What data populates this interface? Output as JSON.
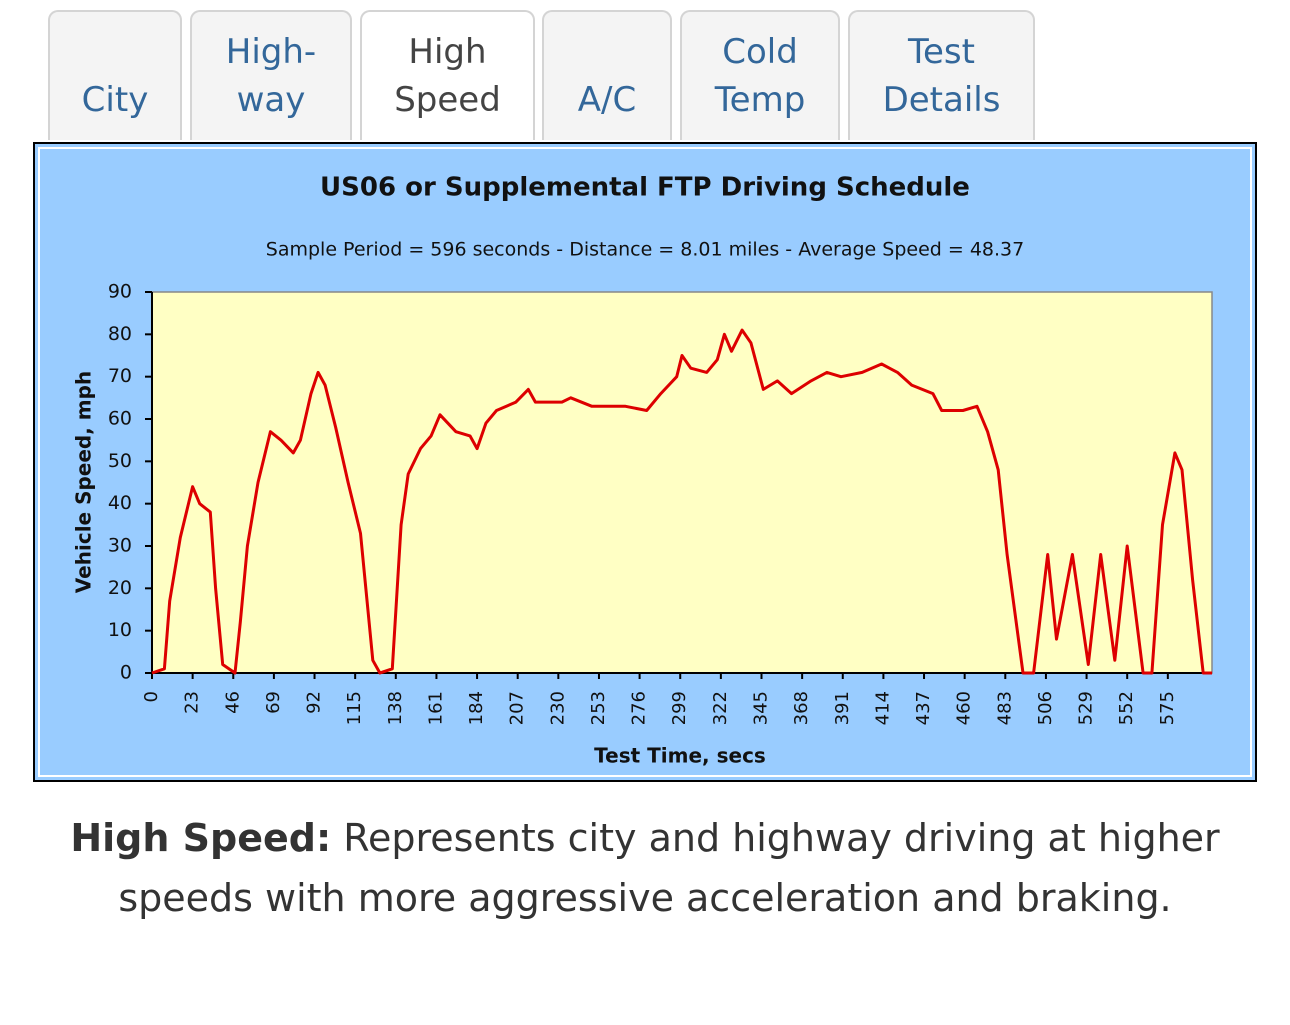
{
  "tabs": [
    {
      "lines": [
        "City"
      ]
    },
    {
      "lines": [
        "High-",
        "way"
      ]
    },
    {
      "lines": [
        "High",
        "Speed"
      ]
    },
    {
      "lines": [
        "A/C"
      ]
    },
    {
      "lines": [
        "Cold",
        "Temp"
      ]
    },
    {
      "lines": [
        "Test",
        "Details"
      ]
    }
  ],
  "chart_data": {
    "type": "line",
    "title": "US06 or Supplemental FTP Driving Schedule",
    "subtitle": "Sample Period = 596 seconds - Distance = 8.01 miles - Average Speed = 48.37",
    "x_label": "Test Time, secs",
    "y_label": "Vehicle Speed, mph",
    "color": "#dd0000",
    "x": [
      0,
      7,
      10,
      16,
      23,
      27,
      33,
      36,
      40,
      47,
      50,
      54,
      60,
      67,
      73,
      80,
      84,
      90,
      94,
      98,
      104,
      111,
      118,
      125,
      129,
      136,
      141,
      145,
      152,
      158,
      163,
      172,
      180,
      184,
      189,
      195,
      206,
      213,
      217,
      232,
      237,
      249,
      268,
      280,
      288,
      297,
      300,
      305,
      314,
      320,
      324,
      328,
      334,
      339,
      346,
      354,
      362,
      373,
      382,
      390,
      402,
      413,
      422,
      430,
      442,
      447,
      459,
      467,
      473,
      479,
      484,
      493,
      499,
      507,
      512,
      521,
      530,
      537,
      545,
      552,
      561,
      566,
      572,
      579,
      583,
      589,
      595,
      600
    ],
    "values": [
      0,
      1,
      17,
      32,
      44,
      40,
      38,
      20,
      2,
      0,
      12,
      30,
      45,
      57,
      55,
      52,
      55,
      66,
      71,
      68,
      58,
      45,
      33,
      3,
      0,
      1,
      35,
      47,
      53,
      56,
      61,
      57,
      56,
      53,
      59,
      62,
      64,
      67,
      64,
      64,
      65,
      63,
      63,
      62,
      66,
      70,
      75,
      72,
      71,
      74,
      80,
      76,
      81,
      78,
      67,
      69,
      66,
      69,
      71,
      70,
      71,
      73,
      71,
      68,
      66,
      62,
      62,
      63,
      57,
      48,
      28,
      0,
      0,
      28,
      8,
      28,
      2,
      28,
      3,
      30,
      0,
      0,
      35,
      52,
      48,
      22,
      0,
      0
    ],
    "xlim": [
      0,
      600
    ],
    "ylim": [
      0,
      90
    ],
    "xticks": [
      0,
      23,
      46,
      69,
      92,
      115,
      138,
      161,
      184,
      207,
      230,
      253,
      276,
      299,
      322,
      345,
      368,
      391,
      414,
      437,
      460,
      483,
      506,
      529,
      552,
      575
    ],
    "yticks": [
      0,
      10,
      20,
      30,
      40,
      50,
      60,
      70,
      80,
      90
    ]
  },
  "caption": {
    "label": "High Speed:",
    "text": "Represents city and highway driving at higher speeds with more aggressive acceleration and braking."
  }
}
